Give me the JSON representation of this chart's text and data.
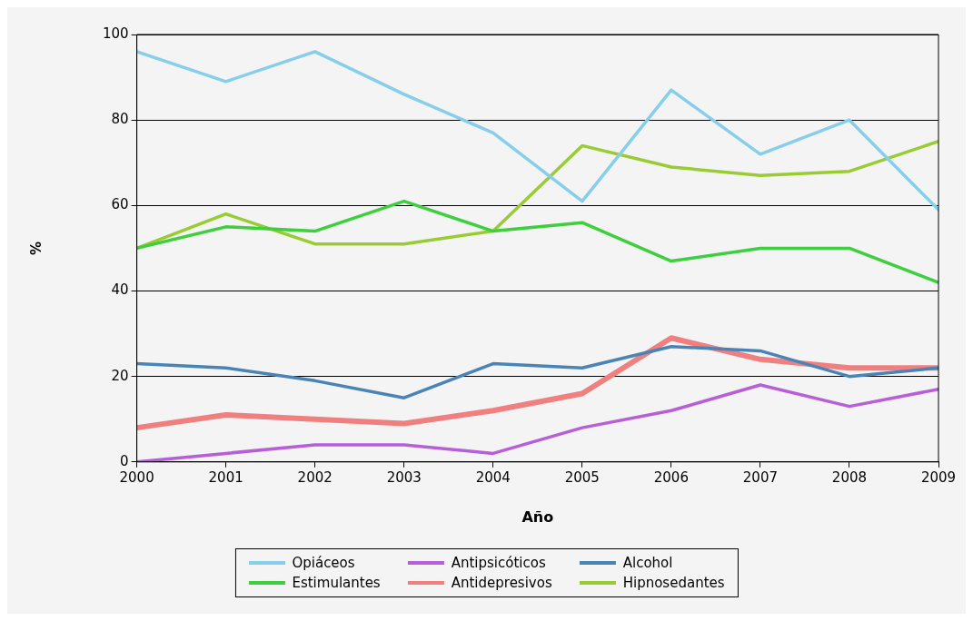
{
  "chart_data": {
    "type": "line",
    "xlabel": "Año",
    "ylabel": "%",
    "x": [
      2000,
      2001,
      2002,
      2003,
      2004,
      2005,
      2006,
      2007,
      2008,
      2009
    ],
    "xlim": [
      2000,
      2009
    ],
    "xticks": [
      2000,
      2001,
      2002,
      2003,
      2004,
      2005,
      2006,
      2007,
      2008,
      2009
    ],
    "ylim": [
      0,
      100
    ],
    "yticks": [
      0,
      20,
      40,
      60,
      80,
      100
    ],
    "grid": "y",
    "legend": "bottom",
    "marker": "none",
    "line_style": "solid",
    "series": [
      {
        "name": "Opiáceos",
        "color": "#87ceeb",
        "values": [
          96,
          89,
          96,
          86,
          77,
          61,
          87,
          72,
          80,
          59
        ]
      },
      {
        "name": "Antipsicóticos",
        "color": "#b65fd8",
        "values": [
          0,
          2,
          4,
          4,
          2,
          8,
          12,
          18,
          13,
          17
        ]
      },
      {
        "name": "Alcohol",
        "color": "#4a84b6",
        "values": [
          23,
          22,
          19,
          15,
          23,
          22,
          27,
          26,
          20,
          22
        ]
      },
      {
        "name": "Estimulantes",
        "color": "#3ecf3e",
        "values": [
          50,
          55,
          54,
          61,
          54,
          56,
          47,
          50,
          50,
          42
        ]
      },
      {
        "name": "Antidepresivos",
        "color": "#f08080",
        "values": [
          8,
          11,
          10,
          9,
          12,
          16,
          29,
          24,
          22,
          22
        ]
      },
      {
        "name": "Hipnosedantes",
        "color": "#99cc33",
        "values": [
          50,
          58,
          51,
          51,
          54,
          74,
          69,
          67,
          68,
          75
        ]
      }
    ]
  }
}
